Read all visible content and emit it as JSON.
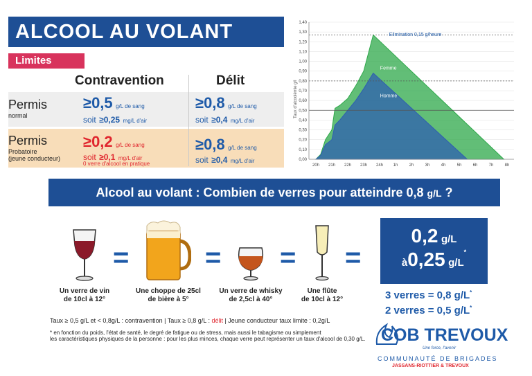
{
  "header": {
    "title": "ALCOOL AU VOLANT",
    "badge": "Limites"
  },
  "table": {
    "col_contravention": "Contravention",
    "col_delit": "Délit",
    "row_normal": {
      "label": "Permis",
      "sub": "normal",
      "contravention": {
        "main": "≥0,5",
        "main_unit": "g/L de sang",
        "air_prefix": "soit",
        "air_val": "≥0,25",
        "air_unit": "mg/L d'air"
      },
      "delit": {
        "main": "≥0,8",
        "main_unit": "g/L de sang",
        "air_prefix": "soit",
        "air_val": "≥0,4",
        "air_unit": "mg/L d'air"
      }
    },
    "row_probatoire": {
      "label": "Permis",
      "sub1": "Probatoire",
      "sub2": "(jeune conducteur)",
      "contravention": {
        "main": "≥0,2",
        "main_unit": "g/L de sang",
        "air_prefix": "soit",
        "air_val": "≥0,1",
        "air_unit": "mg/L d'air",
        "note": "0 verre d'alcool en pratique"
      },
      "delit": {
        "main": "≥0,8",
        "main_unit": "g/L de sang",
        "air_prefix": "soit",
        "air_val": "≥0,4",
        "air_unit": "mg/L d'air"
      }
    }
  },
  "colors": {
    "brand_blue": "#1e4f95",
    "accent_red": "#d8335c",
    "text_blue": "#1e5aa8",
    "probatoire_bg": "#f8ddb9",
    "femme_green": "#2ea84a",
    "homme_blue": "#2f5fb0"
  },
  "chart_data": {
    "type": "area",
    "ylabel": "Taux d'alcoolémie g/l",
    "ylim": [
      0,
      1.4
    ],
    "y_ticks": [
      "0,00",
      "0,10",
      "0,20",
      "0,30",
      "0,40",
      "0,50",
      "0,60",
      "0,70",
      "0,80",
      "0,90",
      "1,00",
      "1,10",
      "1,20",
      "1,30",
      "1,40"
    ],
    "categories": [
      "20h",
      "21h",
      "22h",
      "23h",
      "24h",
      "1h",
      "2h",
      "3h",
      "4h",
      "5h",
      "6h",
      "7h",
      "8h"
    ],
    "annotation": "Elimination 0,15 g/heure",
    "series": [
      {
        "name": "Femme",
        "color": "#2ea84a",
        "points": [
          [
            0,
            0
          ],
          [
            0.3,
            0.05
          ],
          [
            0.6,
            0.2
          ],
          [
            1,
            0.3
          ],
          [
            1.2,
            0.52
          ],
          [
            1.5,
            0.55
          ],
          [
            2,
            0.62
          ],
          [
            2.5,
            0.75
          ],
          [
            3,
            0.9
          ],
          [
            3.6,
            1.27
          ],
          [
            11.8,
            0
          ]
        ]
      },
      {
        "name": "Homme",
        "color": "#2f5fb0",
        "points": [
          [
            0,
            0
          ],
          [
            0.3,
            0.04
          ],
          [
            0.6,
            0.15
          ],
          [
            1,
            0.2
          ],
          [
            1.2,
            0.35
          ],
          [
            1.5,
            0.4
          ],
          [
            2,
            0.5
          ],
          [
            2.5,
            0.6
          ],
          [
            3,
            0.72
          ],
          [
            3.6,
            0.88
          ],
          [
            9.5,
            0
          ]
        ]
      }
    ],
    "thresholds": [
      0.5,
      0.8,
      1.27
    ],
    "grid": true
  },
  "banner": {
    "question_main": "Alcool au volant : Combien de verres pour atteindre 0,8 ",
    "question_unit": "g/L",
    "question_end": " ?"
  },
  "drinks": [
    {
      "icon": "wine-glass-icon",
      "line1": "Un verre de vin",
      "line2": "de 10cl à 12°"
    },
    {
      "icon": "beer-mug-icon",
      "line1": "Une choppe de 25cl",
      "line2": "de bière à 5°"
    },
    {
      "icon": "whisky-glass-icon",
      "line1": "Un verre de whisky",
      "line2": "de 2,5cl à 40°"
    },
    {
      "icon": "champagne-flute-icon",
      "line1": "Une flûte",
      "line2": "de 10cl à 12°"
    }
  ],
  "equals_sign": "=",
  "result": {
    "line1_val": "0,2",
    "line1_unit": "g/L",
    "line2_prefix": "à",
    "line2_val": "0,25",
    "line2_unit": "g/L",
    "star": "*",
    "summary1": "3 verres = 0,8 g/L",
    "summary2": "2 verres = 0,5 g/L"
  },
  "footnotes": {
    "line1_a": "Taux ≥ 0,5 g/L et < 0,8g/L : contravention | Taux ≥ 0,8 g/L : ",
    "line1_delit": "délit",
    "line1_b": " | Jeune conducteur taux limite : 0,2g/L",
    "line2": "* en fonction du poids, l'état de santé, le degré de fatigue ou de stress, mais aussi le tabagisme ou simplement",
    "line3": "les caractéristiques physiques de la personne : pour les plus minces, chaque verre peut représenter un taux d'alcool de 0,30 g/L."
  },
  "logo": {
    "main": "COB TREVOUX",
    "tagline": "Une force, l'avenir",
    "sub": "COMMUNAUTÉ DE BRIGADES",
    "location": "JASSANS-RIOTTIER & TREVOUX"
  }
}
